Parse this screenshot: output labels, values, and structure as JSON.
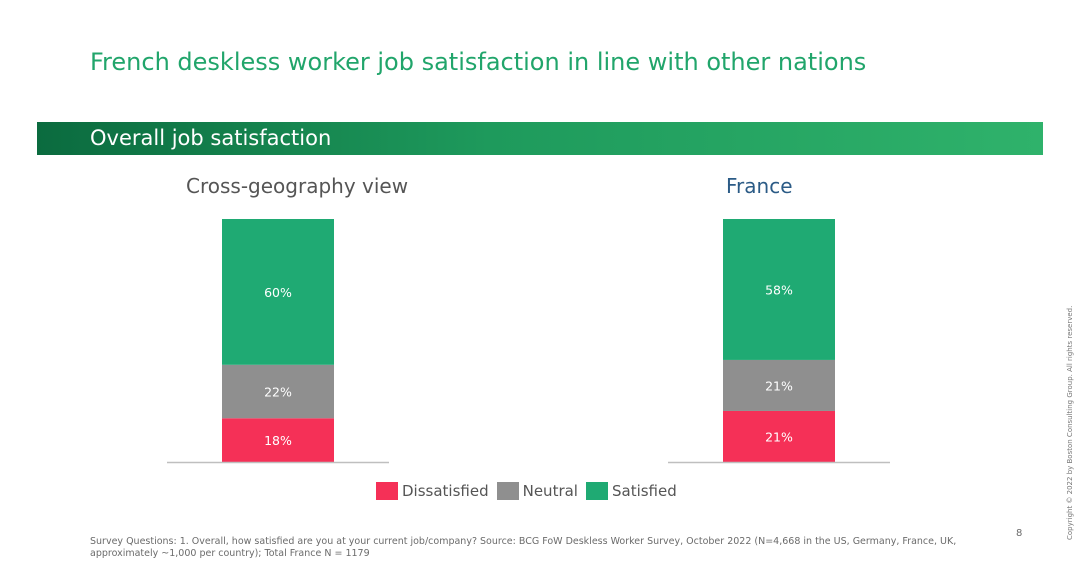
{
  "page": {
    "title": "French deskless worker job satisfaction in line with other nations",
    "banner": "Overall job satisfaction",
    "footnote": "Survey Questions: 1. Overall, how satisfied are you at your current job/company? Source: BCG FoW Deskless Worker Survey, October 2022  (N=4,668 in the US, Germany, France, UK, approximately ~1,000 per country); Total France N = 1179",
    "page_number": "8",
    "copyright": "Copyright © 2022 by Boston Consulting Group. All rights reserved."
  },
  "colors": {
    "dissatisfied": "#f53057",
    "neutral": "#8f8f8f",
    "satisfied": "#1faa73",
    "accent": "#21a56b"
  },
  "chart_data": [
    {
      "type": "bar",
      "stacked": true,
      "title": "Cross-geography view",
      "categories": [
        "Cross-geography view"
      ],
      "series": [
        {
          "name": "Dissatisfied",
          "values": [
            18
          ],
          "labels": [
            "18%"
          ]
        },
        {
          "name": "Neutral",
          "values": [
            22
          ],
          "labels": [
            "22%"
          ]
        },
        {
          "name": "Satisfied",
          "values": [
            60
          ],
          "labels": [
            "60%"
          ]
        }
      ],
      "ylim": [
        0,
        100
      ]
    },
    {
      "type": "bar",
      "stacked": true,
      "title": "France",
      "categories": [
        "France"
      ],
      "series": [
        {
          "name": "Dissatisfied",
          "values": [
            21
          ],
          "labels": [
            "21%"
          ]
        },
        {
          "name": "Neutral",
          "values": [
            21
          ],
          "labels": [
            "21%"
          ]
        },
        {
          "name": "Satisfied",
          "values": [
            58
          ],
          "labels": [
            "58%"
          ]
        }
      ],
      "ylim": [
        0,
        100
      ]
    }
  ],
  "legend": {
    "placement": "bottom",
    "items": [
      {
        "label": "Dissatisfied",
        "color": "#f53057"
      },
      {
        "label": "Neutral",
        "color": "#8f8f8f"
      },
      {
        "label": "Satisfied",
        "color": "#1faa73"
      }
    ]
  }
}
